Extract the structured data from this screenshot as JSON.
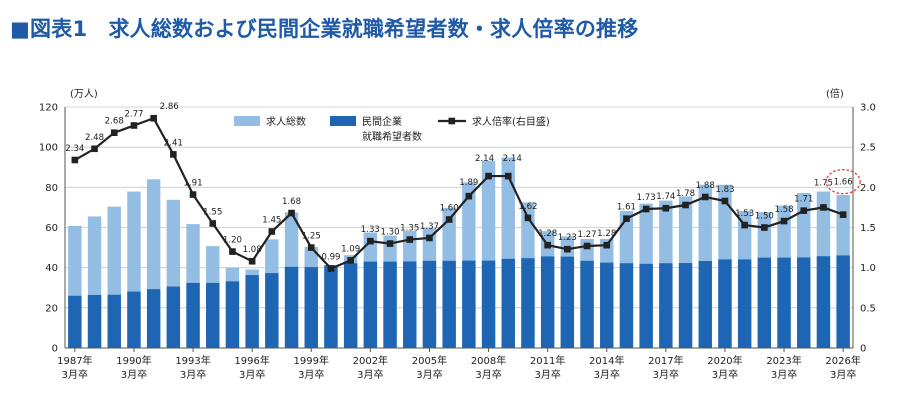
{
  "title": "■図表1　求人総数および民間企業就職希望者数・求人倍率の推移",
  "colors": {
    "total": "#94bde3",
    "private": "#1e66b3",
    "ratio": "#222222",
    "highlight": "#e03c3c",
    "title": "#1f5aa6"
  },
  "chart_data": {
    "type": "bar",
    "title": "■図表1　求人総数および民間企業就職希望者数・求人倍率の推移",
    "left_axis_unit": "(万人)",
    "right_axis_unit": "(倍)",
    "y_left_lim": [
      0,
      120
    ],
    "y_left_ticks": [
      "0",
      "20",
      "40",
      "60",
      "80",
      "100",
      "120"
    ],
    "y_right_lim": [
      0,
      3.0
    ],
    "y_right_ticks": [
      "0",
      "0.5",
      "1.0",
      "1.5",
      "2.0",
      "2.5",
      "3.0"
    ],
    "grid": true,
    "legend_position": "top-center",
    "x": [
      1987,
      1988,
      1989,
      1990,
      1991,
      1992,
      1993,
      1994,
      1995,
      1996,
      1997,
      1998,
      1999,
      2000,
      2001,
      2002,
      2003,
      2004,
      2005,
      2006,
      2007,
      2008,
      2009,
      2010,
      2011,
      2012,
      2013,
      2014,
      2015,
      2016,
      2017,
      2018,
      2019,
      2020,
      2021,
      2022,
      2023,
      2024,
      2025,
      2026
    ],
    "x_tick_labels": [
      {
        "year": 1987,
        "line1": "1987年",
        "line2": "3月卒"
      },
      {
        "year": 1990,
        "line1": "1990年",
        "line2": "3月卒"
      },
      {
        "year": 1993,
        "line1": "1993年",
        "line2": "3月卒"
      },
      {
        "year": 1996,
        "line1": "1996年",
        "line2": "3月卒"
      },
      {
        "year": 1999,
        "line1": "1999年",
        "line2": "3月卒"
      },
      {
        "year": 2002,
        "line1": "2002年",
        "line2": "3月卒"
      },
      {
        "year": 2005,
        "line1": "2005年",
        "line2": "3月卒"
      },
      {
        "year": 2008,
        "line1": "2008年",
        "line2": "3月卒"
      },
      {
        "year": 2011,
        "line1": "2011年",
        "line2": "3月卒"
      },
      {
        "year": 2014,
        "line1": "2014年",
        "line2": "3月卒"
      },
      {
        "year": 2017,
        "line1": "2017年",
        "line2": "3月卒"
      },
      {
        "year": 2020,
        "line1": "2020年",
        "line2": "3月卒"
      },
      {
        "year": 2023,
        "line1": "2023年",
        "line2": "3月卒"
      },
      {
        "year": 2026,
        "line1": "2026年",
        "line2": "3月卒"
      }
    ],
    "series": [
      {
        "name": "求人総数",
        "type": "bar",
        "axis": "left",
        "values": [
          60.8,
          65.5,
          70.4,
          77.9,
          84.0,
          73.8,
          61.7,
          50.7,
          40.0,
          39.1,
          54.1,
          67.5,
          50.3,
          40.8,
          46.2,
          57.5,
          56.0,
          58.3,
          59.6,
          69.8,
          82.5,
          93.3,
          94.9,
          72.5,
          58.2,
          55.6,
          54.3,
          54.3,
          68.2,
          71.9,
          73.4,
          75.5,
          81.3,
          81.3,
          68.2,
          67.6,
          70.9,
          77.2,
          77.9,
          76.2
        ]
      },
      {
        "name_line1": "民間企業",
        "name_line2": "就職希望者数",
        "type": "bar",
        "axis": "left",
        "values": [
          26.0,
          26.4,
          26.5,
          28.1,
          29.3,
          30.6,
          32.4,
          32.4,
          33.2,
          36.3,
          37.3,
          40.4,
          40.3,
          41.2,
          42.2,
          43.0,
          43.0,
          43.1,
          43.4,
          43.4,
          43.5,
          43.5,
          44.4,
          44.7,
          45.6,
          45.5,
          43.4,
          42.5,
          42.2,
          41.9,
          42.2,
          42.3,
          43.3,
          44.1,
          44.1,
          45.0,
          45.0,
          45.1,
          45.7,
          46.1
        ]
      },
      {
        "name": "求人倍率(右目盛)",
        "type": "line",
        "axis": "right",
        "values": [
          2.34,
          2.48,
          2.68,
          2.77,
          2.86,
          2.41,
          1.91,
          1.55,
          1.2,
          1.08,
          1.45,
          1.68,
          1.25,
          0.99,
          1.09,
          1.33,
          1.3,
          1.35,
          1.37,
          1.6,
          1.89,
          2.14,
          2.14,
          1.62,
          1.28,
          1.23,
          1.27,
          1.28,
          1.61,
          1.73,
          1.74,
          1.78,
          1.88,
          1.83,
          1.53,
          1.5,
          1.58,
          1.71,
          1.75,
          1.66
        ],
        "labels": [
          "2.34",
          "2.48",
          "2.68",
          "2.77",
          "2.86",
          "2.41",
          "1.91",
          "1.55",
          "1.20",
          "1.08",
          "1.45",
          "1.68",
          "1.25",
          "0.99",
          "1.09",
          "1.33",
          "1.30",
          "1.35",
          "1.37",
          "1.60",
          "1.89",
          "2.14",
          "2.14",
          "1.62",
          "1.28",
          "1.23",
          "1.27",
          "1.28",
          "1.61",
          "1.73",
          "1.74",
          "1.78",
          "1.88",
          "1.83",
          "1.53",
          "1.50",
          "1.58",
          "1.71",
          "1.75",
          "1.66"
        ],
        "highlighted_label": "1.66"
      }
    ]
  }
}
